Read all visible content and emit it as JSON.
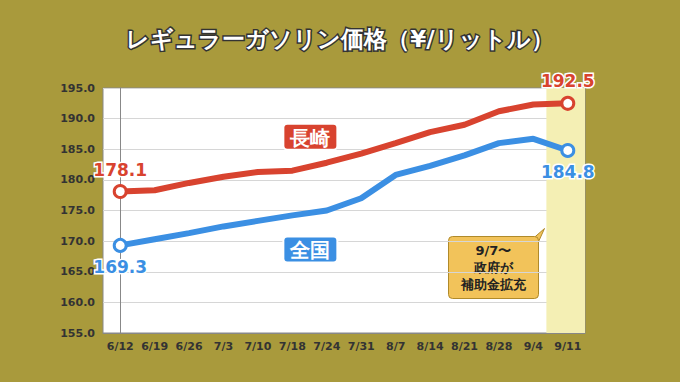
{
  "chart_data": {
    "type": "line",
    "title": "レギュラーガソリン価格（¥/リットル）",
    "categories": [
      "6/12",
      "6/19",
      "6/26",
      "7/3",
      "7/10",
      "7/18",
      "7/24",
      "7/31",
      "8/7",
      "8/14",
      "8/21",
      "8/28",
      "9/4",
      "9/11"
    ],
    "series": [
      {
        "name": "長崎",
        "color": "#d8432f",
        "values": [
          178.1,
          178.3,
          179.5,
          180.5,
          181.3,
          181.5,
          182.8,
          184.3,
          186.0,
          187.8,
          189.0,
          191.2,
          192.3,
          192.5
        ],
        "value_labels": [
          "178.1",
          null,
          null,
          null,
          null,
          null,
          null,
          null,
          null,
          null,
          null,
          null,
          null,
          "192.5"
        ]
      },
      {
        "name": "全国",
        "color": "#3b8fe3",
        "values": [
          169.3,
          170.3,
          171.3,
          172.4,
          173.3,
          174.2,
          175.0,
          177.0,
          180.8,
          182.3,
          184.0,
          186.0,
          186.7,
          184.8
        ],
        "value_labels": [
          "169.3",
          null,
          null,
          null,
          null,
          null,
          null,
          null,
          null,
          null,
          null,
          null,
          null,
          "184.8"
        ]
      }
    ],
    "ylim": [
      155,
      195
    ],
    "yticks": [
      {
        "value": 155,
        "label": "155.0"
      },
      {
        "value": 160,
        "label": "160.0"
      },
      {
        "value": 165,
        "label": "165.0"
      },
      {
        "value": 170,
        "label": "170.0"
      },
      {
        "value": 175,
        "label": "175.0"
      },
      {
        "value": 180,
        "label": "180.0"
      },
      {
        "value": 185,
        "label": "185.0"
      },
      {
        "value": 190,
        "label": "190.0"
      },
      {
        "value": 195,
        "label": "195.0"
      }
    ],
    "grid": true,
    "marker": "circle",
    "annotations": [
      {
        "text": "9/7〜\n政府が\n補助金拡充",
        "from": "9/7"
      }
    ]
  }
}
